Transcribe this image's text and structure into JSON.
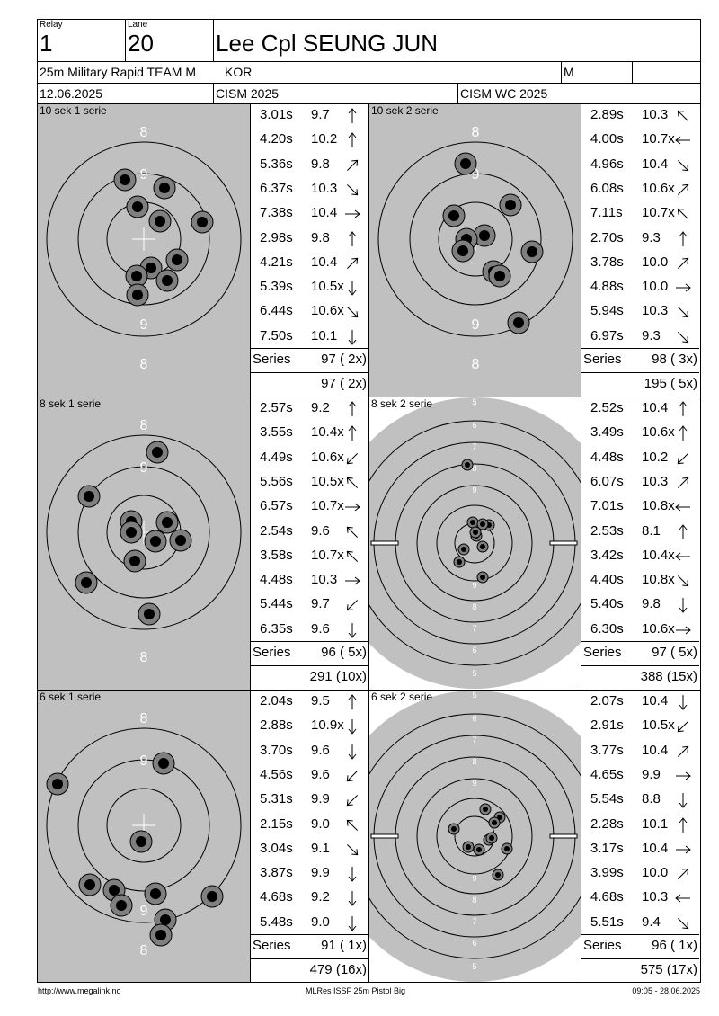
{
  "header": {
    "relay_label": "Relay",
    "relay": "1",
    "lane_label": "Lane",
    "lane": "20",
    "shooter": "Lee Cpl SEUNG JUN",
    "event": "25m Military Rapid TEAM M",
    "nation": "KOR",
    "gender": "M",
    "date": "12.06.2025",
    "competition": "CISM 2025",
    "match": "CISM WC 2025"
  },
  "sections": [
    {
      "label": "10 sek 1 serie",
      "target_type": "military",
      "target_numbers": [
        "8",
        "9",
        "9",
        "8"
      ],
      "shots": [
        {
          "time": "3.01s",
          "score": "9.7",
          "dir": "N"
        },
        {
          "time": "4.20s",
          "score": "10.2",
          "dir": "N"
        },
        {
          "time": "5.36s",
          "score": "9.8",
          "dir": "NE"
        },
        {
          "time": "6.37s",
          "score": "10.3",
          "dir": "SE"
        },
        {
          "time": "7.38s",
          "score": "10.4",
          "dir": "E"
        },
        {
          "time": "2.98s",
          "score": "9.8",
          "dir": "N"
        },
        {
          "time": "4.21s",
          "score": "10.4",
          "dir": "NE"
        },
        {
          "time": "5.39s",
          "score": "10.5x",
          "dir": "S"
        },
        {
          "time": "6.44s",
          "score": "10.6x",
          "dir": "SE"
        },
        {
          "time": "7.50s",
          "score": "10.1",
          "dir": "S"
        }
      ],
      "series_label": "Series",
      "series_total": "97 ( 2x)",
      "running_total": "97 ( 2x)"
    },
    {
      "label": "10 sek 2 serie",
      "target_type": "military",
      "target_numbers": [
        "8",
        "9",
        "9",
        "8"
      ],
      "shots": [
        {
          "time": "2.89s",
          "score": "10.3",
          "dir": "NW"
        },
        {
          "time": "4.00s",
          "score": "10.7x",
          "dir": "W"
        },
        {
          "time": "4.96s",
          "score": "10.4",
          "dir": "SE"
        },
        {
          "time": "6.08s",
          "score": "10.6x",
          "dir": "NE"
        },
        {
          "time": "7.11s",
          "score": "10.7x",
          "dir": "NW"
        },
        {
          "time": "2.70s",
          "score": "9.3",
          "dir": "N"
        },
        {
          "time": "3.78s",
          "score": "10.0",
          "dir": "NE"
        },
        {
          "time": "4.88s",
          "score": "10.0",
          "dir": "E"
        },
        {
          "time": "5.94s",
          "score": "10.3",
          "dir": "SE"
        },
        {
          "time": "6.97s",
          "score": "9.3",
          "dir": "SE"
        }
      ],
      "series_label": "Series",
      "series_total": "98 ( 3x)",
      "running_total": "195 ( 5x)"
    },
    {
      "label": "8 sek 1 serie",
      "target_type": "military",
      "target_numbers": [
        "8",
        "9",
        "9",
        "8"
      ],
      "shots": [
        {
          "time": "2.57s",
          "score": "9.2",
          "dir": "N"
        },
        {
          "time": "3.55s",
          "score": "10.4x",
          "dir": "N"
        },
        {
          "time": "4.49s",
          "score": "10.6x",
          "dir": "SW"
        },
        {
          "time": "5.56s",
          "score": "10.5x",
          "dir": "NW"
        },
        {
          "time": "6.57s",
          "score": "10.7x",
          "dir": "E"
        },
        {
          "time": "2.54s",
          "score": "9.6",
          "dir": "NW"
        },
        {
          "time": "3.58s",
          "score": "10.7x",
          "dir": "NW"
        },
        {
          "time": "4.48s",
          "score": "10.3",
          "dir": "E"
        },
        {
          "time": "5.44s",
          "score": "9.7",
          "dir": "SW"
        },
        {
          "time": "6.35s",
          "score": "9.6",
          "dir": "S"
        }
      ],
      "series_label": "Series",
      "series_total": "96 ( 5x)",
      "running_total": "291 (10x)"
    },
    {
      "label": "8 sek 2 serie",
      "target_type": "precision",
      "target_numbers": [
        "5",
        "6",
        "7",
        "8",
        "9",
        "9",
        "8",
        "7",
        "6",
        "5"
      ],
      "shots": [
        {
          "time": "2.52s",
          "score": "10.4",
          "dir": "N"
        },
        {
          "time": "3.49s",
          "score": "10.6x",
          "dir": "N"
        },
        {
          "time": "4.48s",
          "score": "10.2",
          "dir": "SW"
        },
        {
          "time": "6.07s",
          "score": "10.3",
          "dir": "NE"
        },
        {
          "time": "7.01s",
          "score": "10.8x",
          "dir": "W"
        },
        {
          "time": "2.53s",
          "score": "8.1",
          "dir": "N"
        },
        {
          "time": "3.42s",
          "score": "10.4x",
          "dir": "W"
        },
        {
          "time": "4.40s",
          "score": "10.8x",
          "dir": "SE"
        },
        {
          "time": "5.40s",
          "score": "9.8",
          "dir": "S"
        },
        {
          "time": "6.30s",
          "score": "10.6x",
          "dir": "E"
        }
      ],
      "series_label": "Series",
      "series_total": "97 ( 5x)",
      "running_total": "388 (15x)"
    },
    {
      "label": "6 sek 1 serie",
      "target_type": "military",
      "target_numbers": [
        "8",
        "9",
        "9",
        "8"
      ],
      "shots": [
        {
          "time": "2.04s",
          "score": "9.5",
          "dir": "N"
        },
        {
          "time": "2.88s",
          "score": "10.9x",
          "dir": "S"
        },
        {
          "time": "3.70s",
          "score": "9.6",
          "dir": "S"
        },
        {
          "time": "4.56s",
          "score": "9.6",
          "dir": "SW"
        },
        {
          "time": "5.31s",
          "score": "9.9",
          "dir": "SW"
        },
        {
          "time": "2.15s",
          "score": "9.0",
          "dir": "NW"
        },
        {
          "time": "3.04s",
          "score": "9.1",
          "dir": "SE"
        },
        {
          "time": "3.87s",
          "score": "9.9",
          "dir": "S"
        },
        {
          "time": "4.68s",
          "score": "9.2",
          "dir": "S"
        },
        {
          "time": "5.48s",
          "score": "9.0",
          "dir": "S"
        }
      ],
      "series_label": "Series",
      "series_total": "91 ( 1x)",
      "running_total": "479 (16x)"
    },
    {
      "label": "6 sek 2 serie",
      "target_type": "precision",
      "target_numbers": [
        "5",
        "6",
        "7",
        "8",
        "9",
        "9",
        "8",
        "7",
        "6",
        "5"
      ],
      "shots": [
        {
          "time": "2.07s",
          "score": "10.4",
          "dir": "S"
        },
        {
          "time": "2.91s",
          "score": "10.5x",
          "dir": "SW"
        },
        {
          "time": "3.77s",
          "score": "10.4",
          "dir": "NE"
        },
        {
          "time": "4.65s",
          "score": "9.9",
          "dir": "E"
        },
        {
          "time": "5.54s",
          "score": "8.8",
          "dir": "S"
        },
        {
          "time": "2.28s",
          "score": "10.1",
          "dir": "N"
        },
        {
          "time": "3.17s",
          "score": "10.4",
          "dir": "E"
        },
        {
          "time": "3.99s",
          "score": "10.0",
          "dir": "NE"
        },
        {
          "time": "4.68s",
          "score": "10.3",
          "dir": "W"
        },
        {
          "time": "5.51s",
          "score": "9.4",
          "dir": "SE"
        }
      ],
      "series_label": "Series",
      "series_total": "96 ( 1x)",
      "running_total": "575 (17x)"
    }
  ],
  "footer": {
    "url": "http://www.megalink.no",
    "program": "MLRes ISSF 25m Pistol Big",
    "timestamp": "09:05 - 28.06.2025"
  },
  "colors": {
    "target_bg": "#c0c0c0",
    "ring": "#000000",
    "shot_outer": "#7f7f7f",
    "shot_inner": "#000000"
  }
}
